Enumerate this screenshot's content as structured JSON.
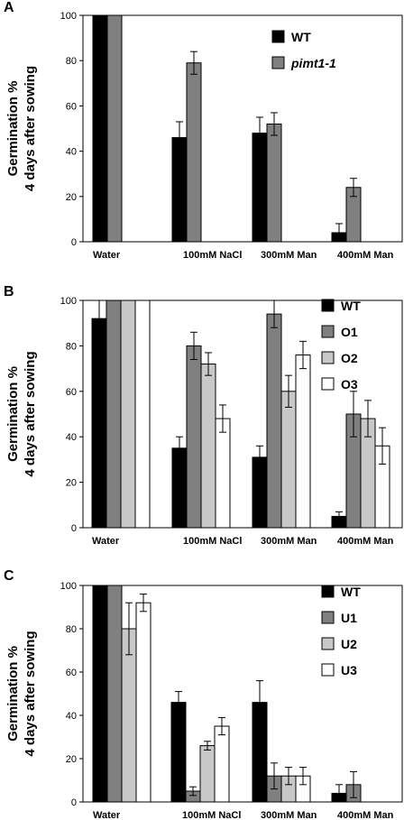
{
  "chart_data": [
    {
      "type": "bar",
      "panel_label": "A",
      "ylabel_line1": "Germination %",
      "ylabel_line2": "4 days after sowing",
      "ylim": [
        0,
        100
      ],
      "yticks": [
        "0",
        "20",
        "40",
        "60",
        "80",
        "100"
      ],
      "categories": [
        "Water",
        "100mM NaCl",
        "300mM Man",
        "400mM Man"
      ],
      "legend_position": "top-right",
      "series": [
        {
          "name": "WT",
          "color": "#000000",
          "values": [
            100,
            46,
            48,
            4
          ],
          "errors": [
            0,
            7,
            7,
            4
          ]
        },
        {
          "name": "pimt1-1",
          "italic": true,
          "color": "#808080",
          "values": [
            100,
            79,
            52,
            24
          ],
          "errors": [
            0,
            5,
            5,
            4
          ]
        }
      ]
    },
    {
      "type": "bar",
      "panel_label": "B",
      "ylabel_line1": "Germination %",
      "ylabel_line2": "4 days after sowing",
      "ylim": [
        0,
        100
      ],
      "yticks": [
        "0",
        "20",
        "40",
        "60",
        "80",
        "100"
      ],
      "categories": [
        "Water",
        "100mM NaCl",
        "300mM Man",
        "400mM Man"
      ],
      "legend_position": "top-right",
      "series": [
        {
          "name": "WT",
          "color": "#000000",
          "values": [
            92,
            35,
            31,
            5
          ],
          "errors": [
            8,
            5,
            5,
            2
          ]
        },
        {
          "name": "O1",
          "color": "#808080",
          "values": [
            100,
            80,
            94,
            50
          ],
          "errors": [
            0,
            6,
            6,
            10
          ]
        },
        {
          "name": "O2",
          "color": "#c8c8c8",
          "values": [
            100,
            72,
            60,
            48
          ],
          "errors": [
            0,
            5,
            7,
            8
          ]
        },
        {
          "name": "O3",
          "color": "#ffffff",
          "values": [
            100,
            48,
            76,
            36
          ],
          "errors": [
            0,
            6,
            6,
            8
          ]
        }
      ]
    },
    {
      "type": "bar",
      "panel_label": "C",
      "ylabel_line1": "Germination %",
      "ylabel_line2": "4 days after sowing",
      "ylim": [
        0,
        100
      ],
      "yticks": [
        "0",
        "20",
        "40",
        "60",
        "80",
        "100"
      ],
      "categories": [
        "Water",
        "100mM NaCl",
        "300mM Man",
        "400mM Man"
      ],
      "legend_position": "top-right",
      "series": [
        {
          "name": "WT",
          "color": "#000000",
          "values": [
            100,
            46,
            46,
            4
          ],
          "errors": [
            0,
            5,
            10,
            4
          ]
        },
        {
          "name": "U1",
          "color": "#808080",
          "values": [
            100,
            5,
            12,
            8
          ],
          "errors": [
            0,
            2,
            6,
            6
          ]
        },
        {
          "name": "U2",
          "color": "#c8c8c8",
          "values": [
            80,
            26,
            12,
            0
          ],
          "errors": [
            12,
            2,
            4,
            0
          ]
        },
        {
          "name": "U3",
          "color": "#ffffff",
          "values": [
            92,
            35,
            12,
            0
          ],
          "errors": [
            4,
            4,
            4,
            0
          ]
        }
      ]
    }
  ]
}
